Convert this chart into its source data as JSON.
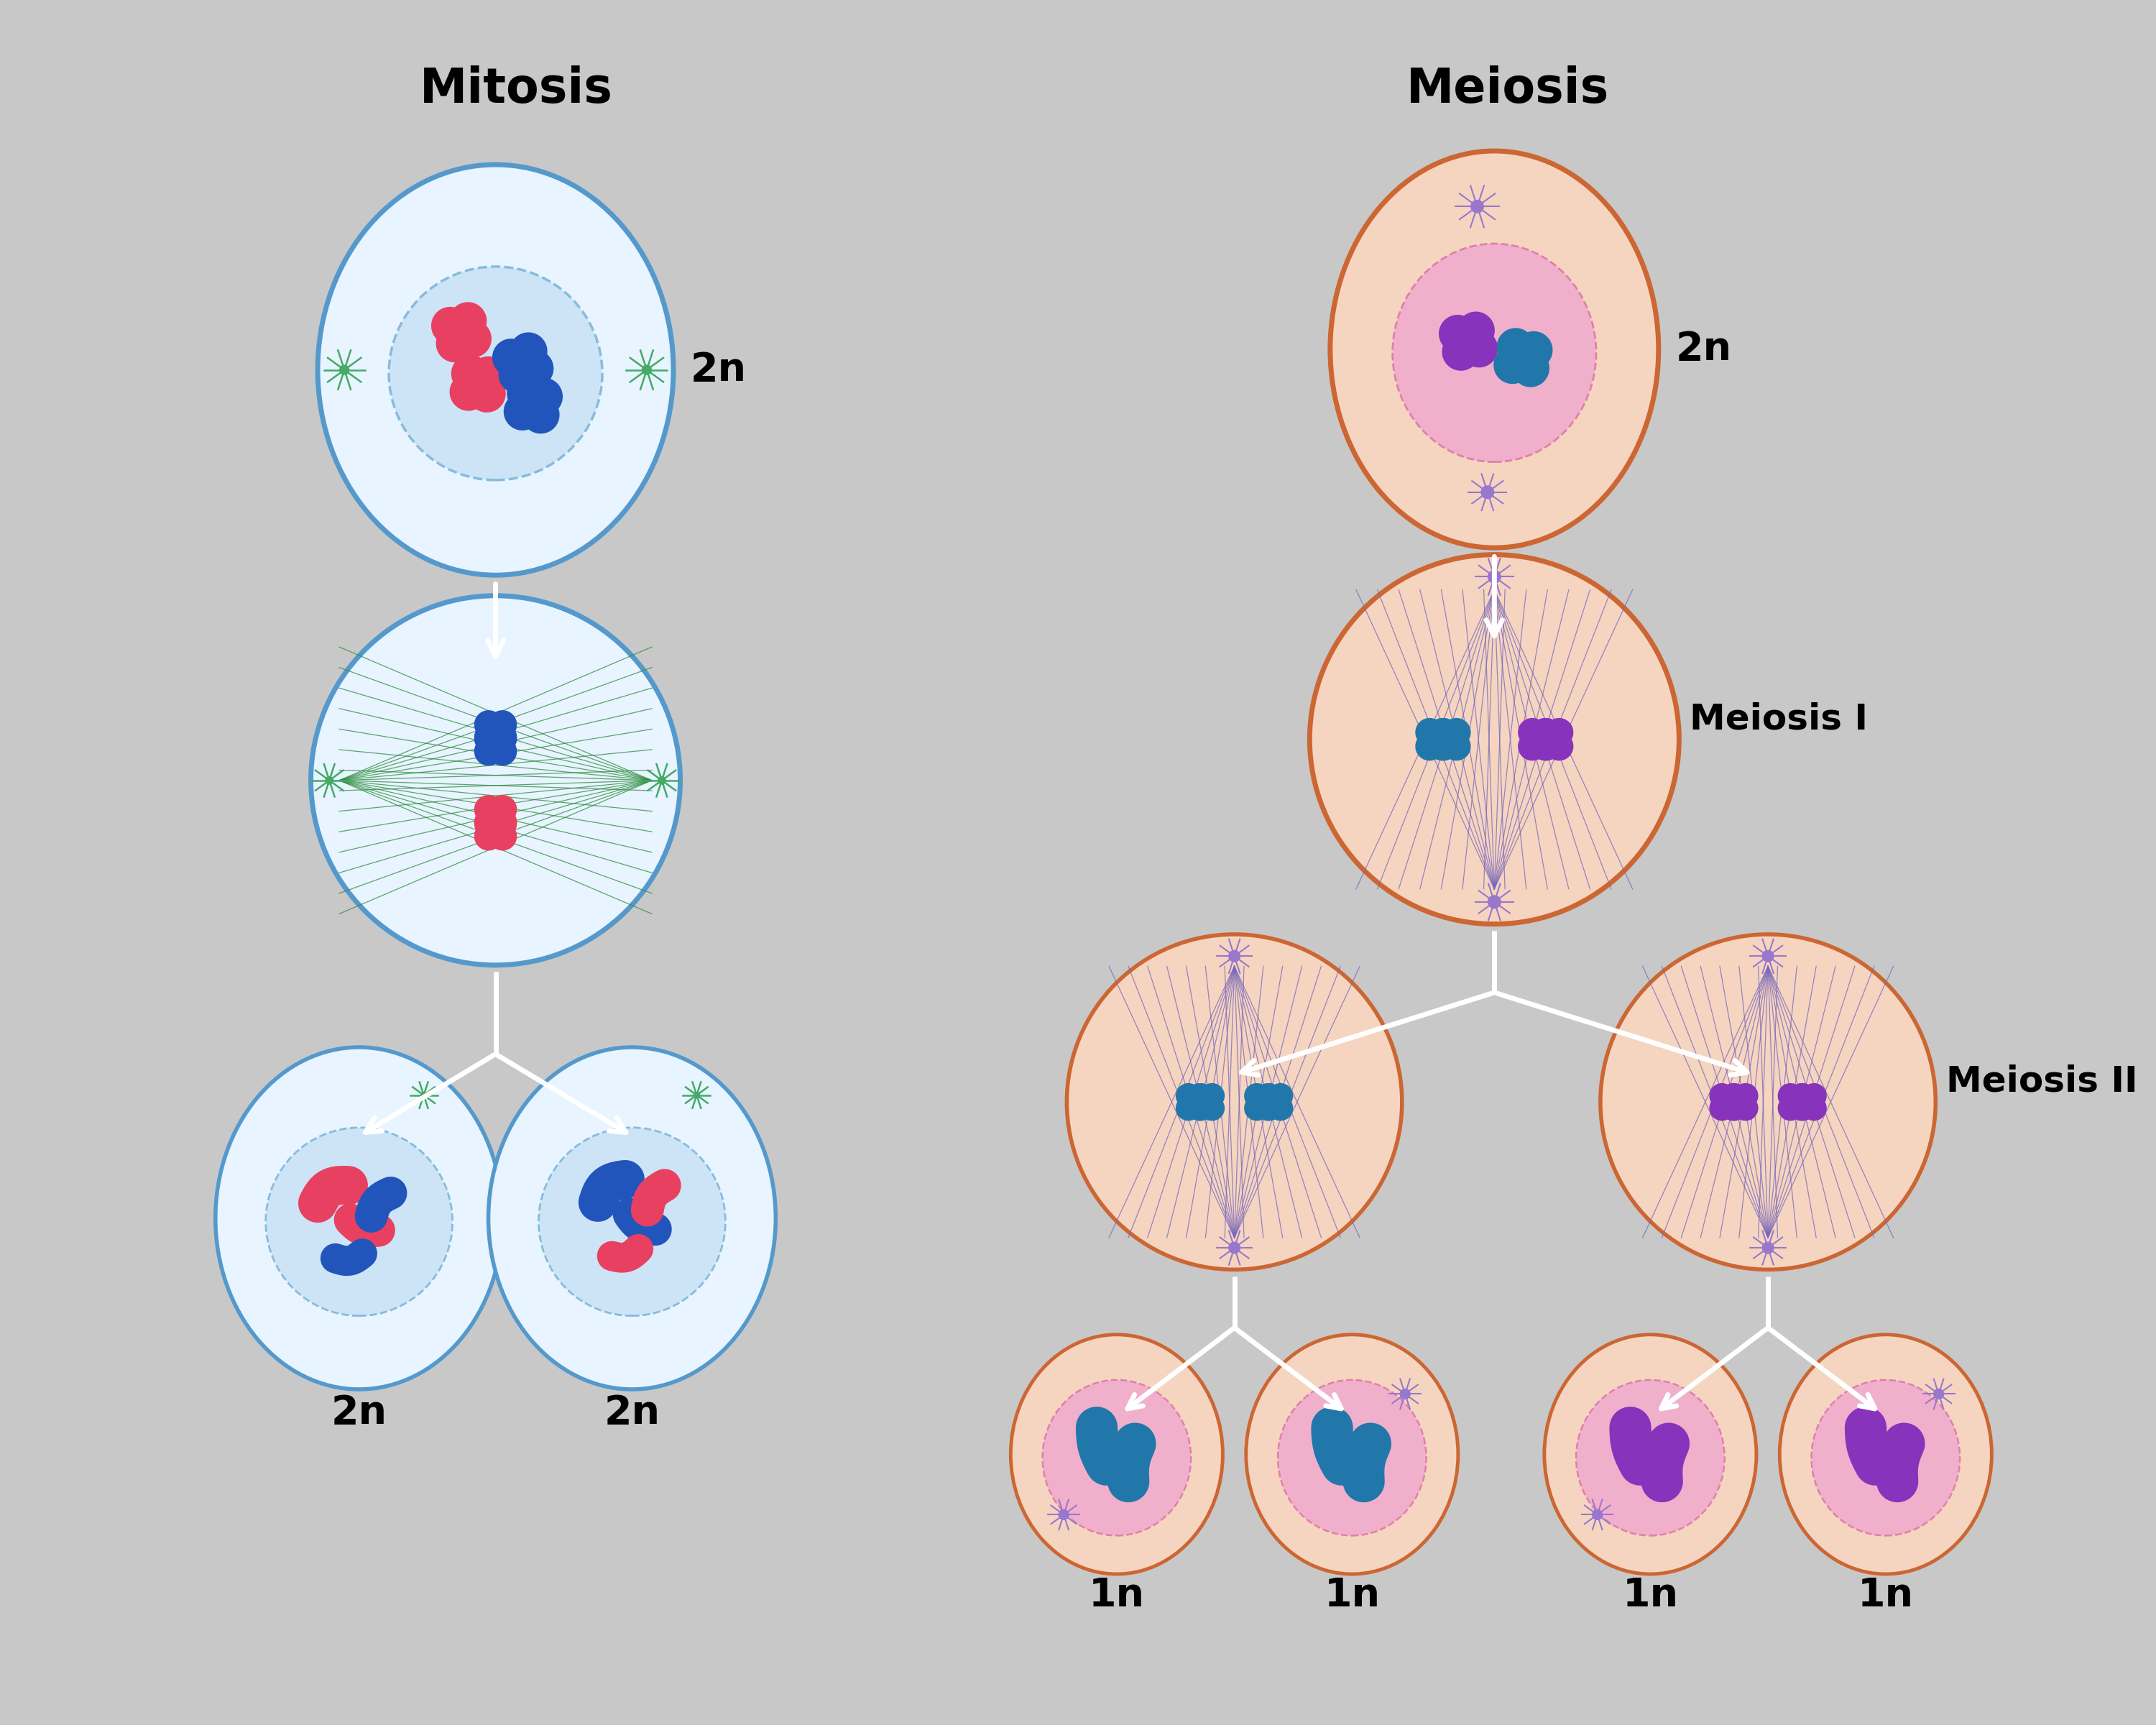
{
  "bg_color": "#c8c8c8",
  "title_mitosis": "Mitosis",
  "title_meiosis": "Meiosis",
  "label_meiosis_I": "Meiosis I",
  "label_meiosis_II": "Meiosis II",
  "title_fontsize": 48,
  "label_fontsize": 36,
  "ploidy_fontsize": 40,
  "mitosis_cell_border": "#5599cc",
  "mitosis_cell_fill": "#e8f4ff",
  "mitosis_nucleus_fill": "#cce4f5",
  "mitosis_nucleus_border": "#88bbdd",
  "meiosis_cell_border": "#cc6633",
  "meiosis_cell_fill": "#f5d5c0",
  "meiosis_nucleus_fill": "#f0b0cc",
  "meiosis_nucleus_border": "#e080aa",
  "spindle_green": "#2a8a3a",
  "spindle_purple": "#7766bb",
  "chr_pink": "#e84060",
  "chr_blue": "#2255bb",
  "chr_purple": "#8833bb",
  "chr_teal": "#2277aa",
  "centriole_green": "#44aa66",
  "centriole_purple": "#9977cc"
}
